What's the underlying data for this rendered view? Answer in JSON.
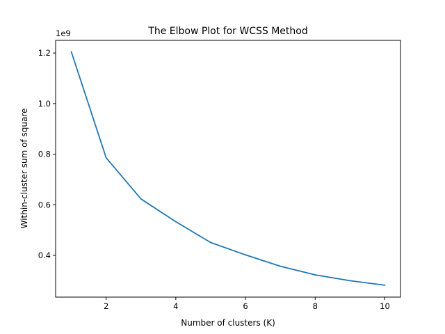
{
  "chart_data": {
    "type": "line",
    "title": "The Elbow Plot for WCSS Method",
    "xlabel": "Number of clusters (K)",
    "ylabel": "Within-cluster sum of square",
    "y_offset_label": "1e9",
    "x": [
      1,
      2,
      3,
      4,
      5,
      6,
      7,
      8,
      9,
      10
    ],
    "series": [
      {
        "values": [
          1.205,
          0.786,
          0.623,
          0.533,
          0.451,
          0.402,
          0.357,
          0.323,
          0.3,
          0.282
        ],
        "color": "#1f77b4"
      }
    ],
    "xlim": [
      0.55,
      10.45
    ],
    "ylim": [
      0.235,
      1.25
    ],
    "xticks": [
      2,
      4,
      6,
      8,
      10
    ],
    "xtick_labels": [
      "2",
      "4",
      "6",
      "8",
      "10"
    ],
    "yticks": [
      0.4,
      0.6,
      0.8,
      1.0,
      1.2
    ],
    "ytick_labels": [
      "0.4",
      "0.6",
      "0.8",
      "1.0",
      "1.2"
    ],
    "grid": false,
    "legend": "none"
  }
}
